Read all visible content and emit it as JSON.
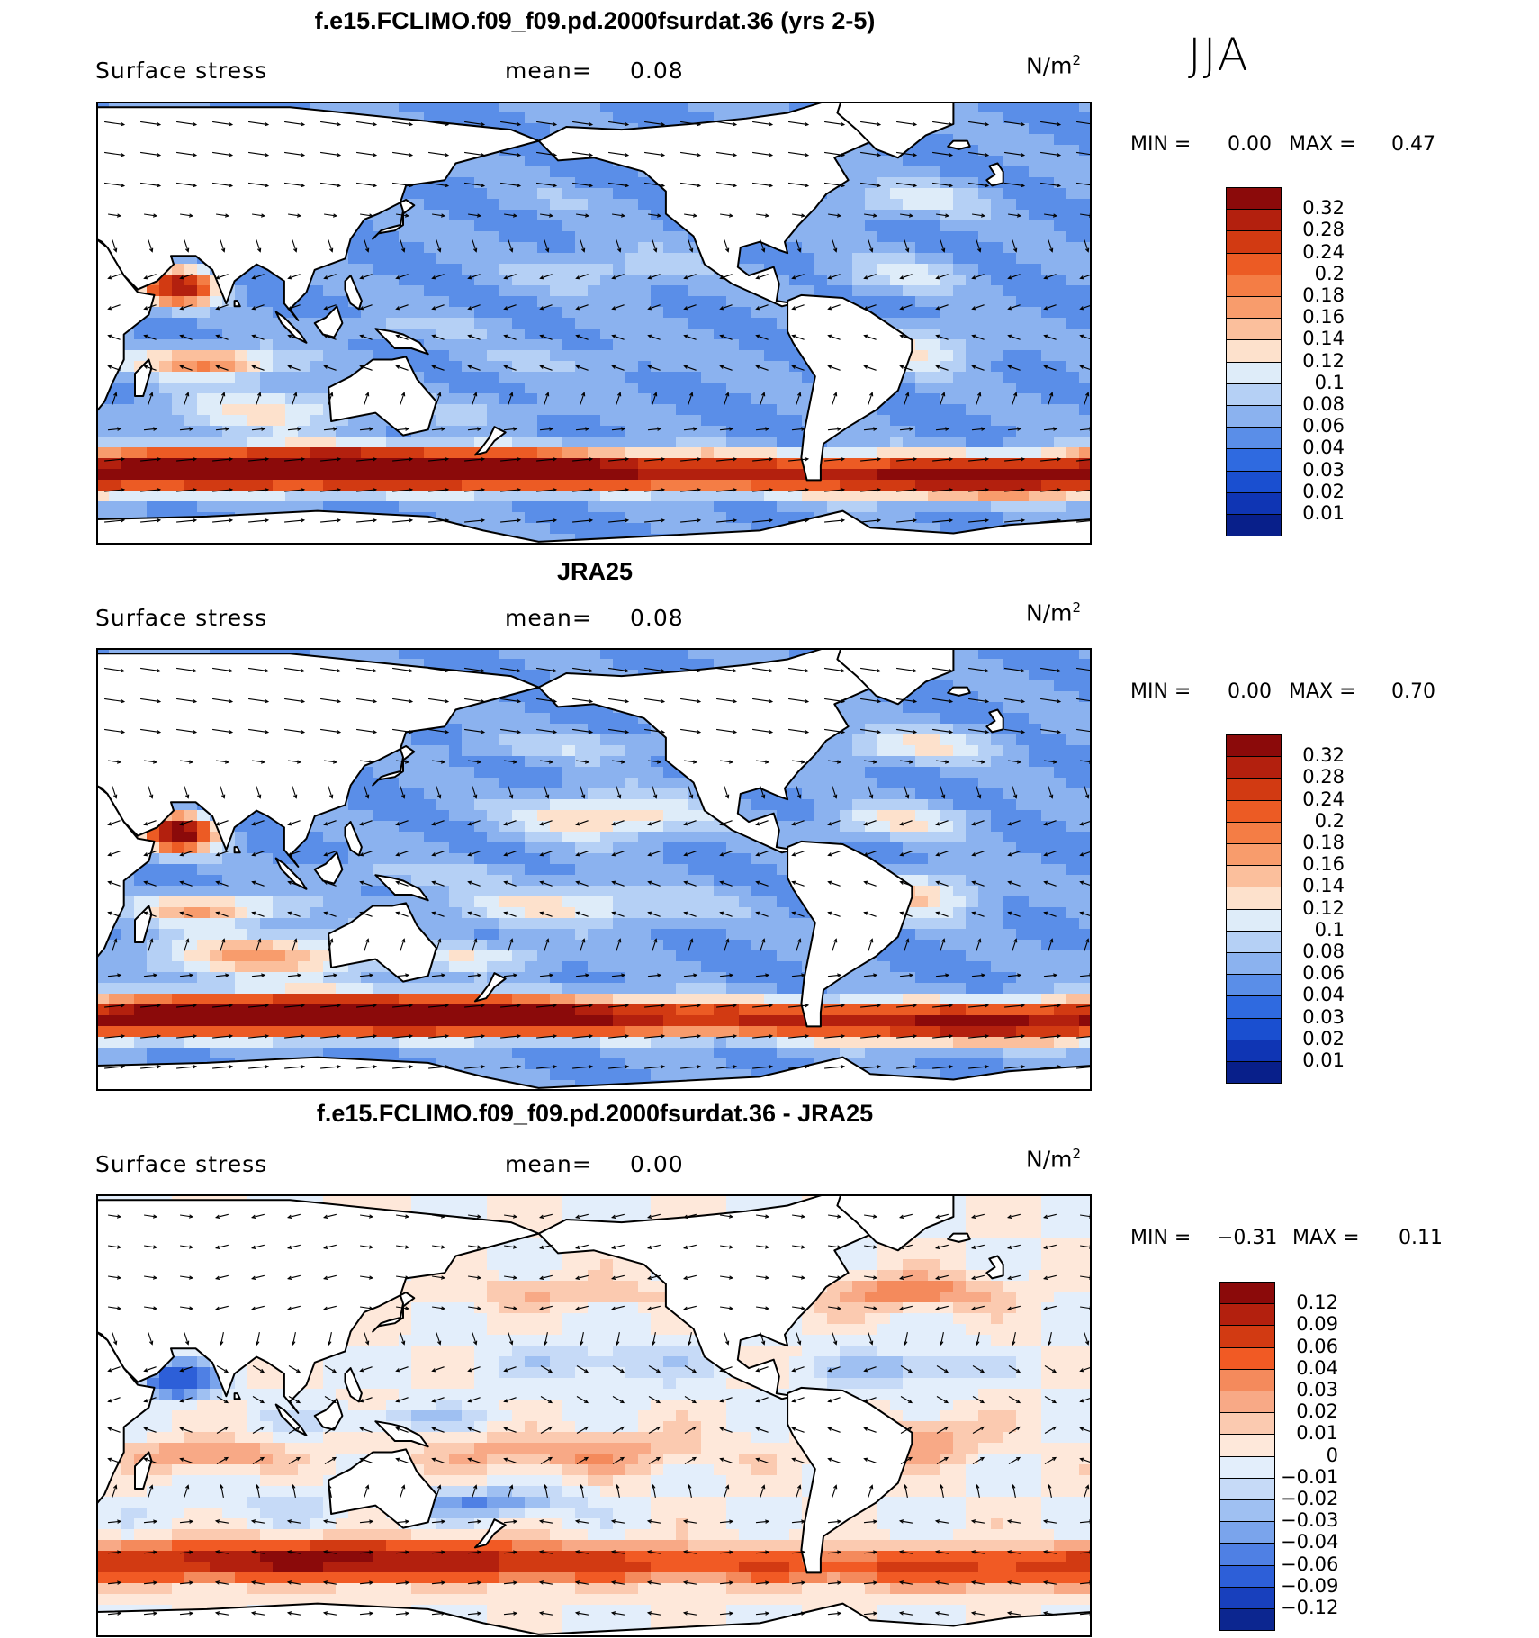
{
  "season": "JJA",
  "colors": {
    "land": "#ffffff",
    "coast": "#000000",
    "arrow": "#000000"
  },
  "panels": [
    {
      "title": "f.e15.FCLIMO.f09_f09.pd.2000fsurdat.36 (yrs 2-5)",
      "variable": "Surface stress",
      "mean_label": "mean=",
      "mean_value": "0.08",
      "units_base": "N/m",
      "units_exp": "2",
      "min_label": "MIN =",
      "min_value": "0.00",
      "max_label": "MAX =",
      "max_value": "0.47",
      "colorbar": {
        "labels": [
          "0.32",
          "0.28",
          "0.24",
          "0.2",
          "0.18",
          "0.16",
          "0.14",
          "0.12",
          "0.1",
          "0.08",
          "0.06",
          "0.04",
          "0.03",
          "0.02",
          "0.01"
        ],
        "colors": [
          "#8b0a0a",
          "#b3200e",
          "#d23a12",
          "#ec5b24",
          "#f47d45",
          "#f89c6c",
          "#fbbf9c",
          "#fde1cc",
          "#deecf9",
          "#b5d0f5",
          "#8bb2ef",
          "#5a8ee8",
          "#2f6ae0",
          "#1a4fd0",
          "#0f35b4",
          "#081f8a"
        ]
      }
    },
    {
      "title": "JRA25",
      "variable": "Surface stress",
      "mean_label": "mean=",
      "mean_value": "0.08",
      "units_base": "N/m",
      "units_exp": "2",
      "min_label": "MIN =",
      "min_value": "0.00",
      "max_label": "MAX =",
      "max_value": "0.70",
      "colorbar": {
        "labels": [
          "0.32",
          "0.28",
          "0.24",
          "0.2",
          "0.18",
          "0.16",
          "0.14",
          "0.12",
          "0.1",
          "0.08",
          "0.06",
          "0.04",
          "0.03",
          "0.02",
          "0.01"
        ],
        "colors": [
          "#8b0a0a",
          "#b3200e",
          "#d23a12",
          "#ec5b24",
          "#f47d45",
          "#f89c6c",
          "#fbbf9c",
          "#fde1cc",
          "#deecf9",
          "#b5d0f5",
          "#8bb2ef",
          "#5a8ee8",
          "#2f6ae0",
          "#1a4fd0",
          "#0f35b4",
          "#081f8a"
        ]
      }
    },
    {
      "title": "f.e15.FCLIMO.f09_f09.pd.2000fsurdat.36 - JRA25",
      "variable": "Surface stress",
      "mean_label": "mean=",
      "mean_value": "0.00",
      "units_base": "N/m",
      "units_exp": "2",
      "min_label": "MIN =",
      "min_value": "−0.31",
      "max_label": "MAX =",
      "max_value": "0.11",
      "colorbar": {
        "labels": [
          "0.12",
          "0.09",
          "0.06",
          "0.04",
          "0.03",
          "0.02",
          "0.01",
          "0",
          "−0.01",
          "−0.02",
          "−0.03",
          "−0.04",
          "−0.06",
          "−0.09",
          "−0.12"
        ],
        "colors": [
          "#8b0a0a",
          "#b3200e",
          "#d23a12",
          "#f15a24",
          "#f48a5c",
          "#f8a986",
          "#fbcab0",
          "#fee8da",
          "#e3eefb",
          "#c6daf7",
          "#9fc0f2",
          "#7aa4ec",
          "#4f80e4",
          "#2d5fd8",
          "#1840bd",
          "#0c2690"
        ]
      }
    }
  ],
  "chart_data": [
    {
      "type": "heatmap",
      "title": "f.e15.FCLIMO.f09_f09.pd.2000fsurdat.36 (yrs 2-5)",
      "variable": "Surface stress",
      "units": "N/m2",
      "season": "JJA",
      "mean": 0.08,
      "min": 0.0,
      "max": 0.47,
      "levels": [
        0.01,
        0.02,
        0.03,
        0.04,
        0.06,
        0.08,
        0.1,
        0.12,
        0.14,
        0.16,
        0.18,
        0.2,
        0.24,
        0.28,
        0.32
      ],
      "overlay": "wind stress vectors"
    },
    {
      "type": "heatmap",
      "title": "JRA25",
      "variable": "Surface stress",
      "units": "N/m2",
      "season": "JJA",
      "mean": 0.08,
      "min": 0.0,
      "max": 0.7,
      "levels": [
        0.01,
        0.02,
        0.03,
        0.04,
        0.06,
        0.08,
        0.1,
        0.12,
        0.14,
        0.16,
        0.18,
        0.2,
        0.24,
        0.28,
        0.32
      ],
      "overlay": "wind stress vectors"
    },
    {
      "type": "heatmap",
      "title": "f.e15.FCLIMO.f09_f09.pd.2000fsurdat.36 - JRA25",
      "variable": "Surface stress",
      "units": "N/m2",
      "season": "JJA",
      "mean": 0.0,
      "min": -0.31,
      "max": 0.11,
      "levels": [
        -0.12,
        -0.09,
        -0.06,
        -0.04,
        -0.03,
        -0.02,
        -0.01,
        0,
        0.01,
        0.02,
        0.03,
        0.04,
        0.06,
        0.09,
        0.12
      ],
      "overlay": "wind stress difference vectors"
    }
  ]
}
